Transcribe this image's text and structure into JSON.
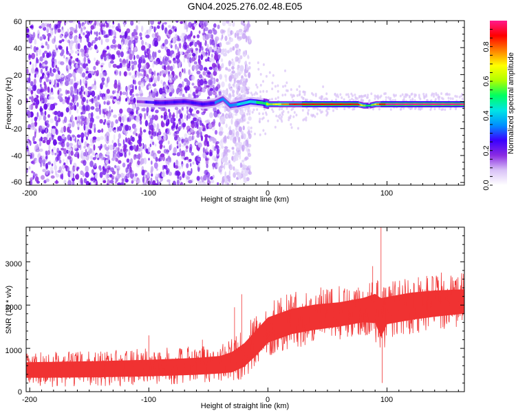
{
  "title": "GN04.2025.276.02.48.E05",
  "chart_data": [
    {
      "type": "heatmap",
      "xlabel": "Height of straight line (km)",
      "ylabel": "Frequency (Hz)",
      "xlim": [
        -203,
        165
      ],
      "ylim": [
        -62,
        60
      ],
      "xticks": [
        "-200",
        "-100",
        "0",
        "100"
      ],
      "yticks": [
        "60",
        "40",
        "20",
        "0",
        "-20",
        "-40",
        "-60"
      ],
      "colorbar": {
        "label": "Normalized spectral amplitude",
        "range": [
          0,
          0.95
        ],
        "ticks": [
          "0.0",
          "0.2",
          "0.4",
          "0.6",
          "0.8"
        ],
        "colors": [
          "#ffffff",
          "#d9c2f7",
          "#8a2be2",
          "#3a00ff",
          "#0090ff",
          "#00e5e5",
          "#00ff60",
          "#b0ff00",
          "#ffff00",
          "#ff8000",
          "#ff0000",
          "#ff1a8c"
        ]
      },
      "noise_region_end_km": -25,
      "band": {
        "x": [
          -110,
          -90,
          -70,
          -55,
          -45,
          -38,
          -32,
          -25,
          -15,
          -5,
          0,
          20,
          50,
          75,
          80,
          85,
          90,
          95,
          120,
          165
        ],
        "freq": [
          0,
          -1,
          0,
          -2,
          -1,
          2,
          -3,
          -2,
          0,
          -1,
          -2,
          -2,
          -2,
          -2,
          -3,
          -3,
          -2,
          -2,
          -2,
          -2
        ],
        "amp": [
          0.2,
          0.25,
          0.3,
          0.3,
          0.3,
          0.35,
          0.35,
          0.4,
          0.45,
          0.5,
          0.6,
          0.85,
          0.9,
          0.9,
          0.6,
          0.5,
          0.7,
          0.9,
          0.95,
          0.95
        ]
      }
    },
    {
      "type": "line",
      "xlabel": "Height of straight line (km)",
      "ylabel": "SNR (10 * v/v)",
      "xlim": [
        -203,
        165
      ],
      "ylim": [
        0,
        3800
      ],
      "xticks": [
        "-200",
        "-100",
        "0",
        "100"
      ],
      "yticks": [
        "3000",
        "2000",
        "1000",
        "0"
      ],
      "color": "#f03232",
      "envelope": {
        "x": [
          -203,
          -150,
          -100,
          -60,
          -40,
          -30,
          -20,
          -10,
          0,
          20,
          40,
          60,
          80,
          90,
          95,
          100,
          120,
          140,
          165
        ],
        "mean": [
          500,
          500,
          520,
          560,
          600,
          650,
          800,
          1100,
          1400,
          1600,
          1700,
          1750,
          1850,
          1900,
          1800,
          1850,
          1950,
          2000,
          2050
        ],
        "upper": [
          900,
          950,
          1000,
          1050,
          1100,
          1250,
          1500,
          1800,
          2100,
          2300,
          2400,
          2450,
          2550,
          2700,
          2600,
          2600,
          2700,
          2750,
          2750
        ],
        "lower": [
          100,
          120,
          150,
          180,
          200,
          200,
          300,
          500,
          800,
          1000,
          1100,
          1200,
          1300,
          1200,
          600,
          1200,
          1300,
          1400,
          1500
        ]
      },
      "spikes": [
        {
          "x": -100,
          "y": 1300
        },
        {
          "x": -55,
          "y": 1200
        },
        {
          "x": -28,
          "y": 1950
        },
        {
          "x": -22,
          "y": 2250
        },
        {
          "x": 20,
          "y": 2200
        },
        {
          "x": 88,
          "y": 2900
        },
        {
          "x": 95,
          "y": 3800
        },
        {
          "x": 96,
          "y": 200
        }
      ]
    }
  ]
}
